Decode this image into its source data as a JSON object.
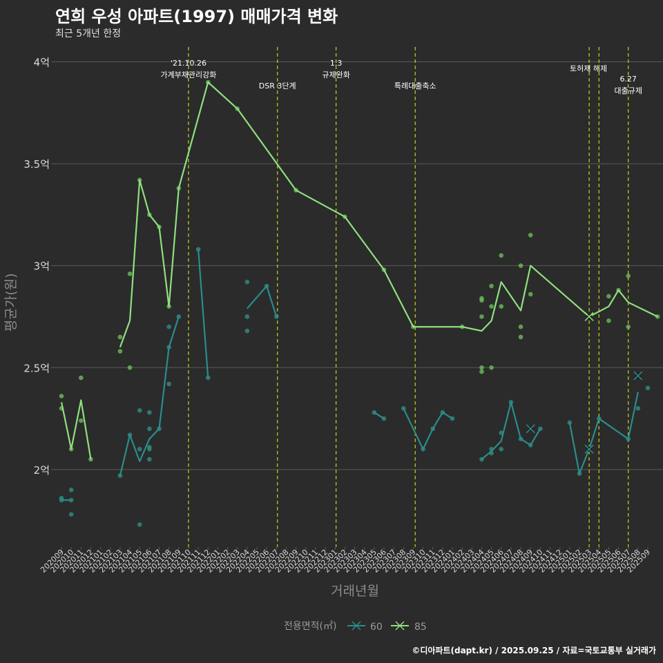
{
  "header": {
    "title": "연희 우성 아파트(1997) 매매가격 변화",
    "subtitle": "최근 5개년 한정"
  },
  "caption": "©디아파트(dapt.kr) / 2025.09.25 / 자료=국토교통부 실거래가",
  "colors": {
    "background": "#2b2b2b",
    "grid": "#5a5a5a",
    "series60": "#2a8d8c",
    "series85": "#90e07f",
    "point60": "#2f8f86",
    "point85": "#6bbb5d",
    "eventLine": "#c8d21e",
    "axisText": "#d9d9d9",
    "axisTitle": "#8c8c8c"
  },
  "chart_data": {
    "type": "line",
    "title": "연희 우성 아파트(1997) 매매가격 변화",
    "xlabel": "거래년월",
    "ylabel": "평균가(원)",
    "ylim": [
      1.62,
      4.1
    ],
    "y_ticks": [
      {
        "value": 2,
        "label": "2억"
      },
      {
        "value": 2.5,
        "label": "2.5억"
      },
      {
        "value": 3,
        "label": "3억"
      },
      {
        "value": 3.5,
        "label": "3.5억"
      },
      {
        "value": 4,
        "label": "4억"
      }
    ],
    "categories": [
      "202009",
      "202010",
      "202011",
      "202012",
      "202101",
      "202102",
      "202103",
      "202104",
      "202105",
      "202106",
      "202107",
      "202108",
      "202109",
      "202110",
      "202111",
      "202112",
      "202201",
      "202202",
      "202203",
      "202204",
      "202205",
      "202206",
      "202207",
      "202208",
      "202209",
      "202210",
      "202211",
      "202212",
      "202301",
      "202302",
      "202303",
      "202304",
      "202305",
      "202306",
      "202307",
      "202308",
      "202309",
      "202310",
      "202311",
      "202312",
      "202401",
      "202402",
      "202403",
      "202404",
      "202405",
      "202406",
      "202407",
      "202408",
      "202409",
      "202410",
      "202411",
      "202412",
      "202501",
      "202502",
      "202503",
      "202504",
      "202505",
      "202506",
      "202507",
      "202508",
      "202509"
    ],
    "legend_title": "전용면적(㎡)",
    "legend_position": "bottom",
    "series": [
      {
        "name": "60",
        "line": [
          [
            0,
            1.85
          ],
          [
            1,
            1.85
          ],
          [
            null,
            null
          ],
          [
            6,
            1.97
          ],
          [
            7,
            2.17
          ],
          [
            8,
            2.04
          ],
          [
            9,
            2.15
          ],
          [
            10,
            2.2
          ],
          [
            11,
            2.6
          ],
          [
            12,
            2.75
          ],
          [
            null,
            null
          ],
          [
            14,
            3.08
          ],
          [
            15,
            2.45
          ],
          [
            null,
            null
          ],
          [
            19,
            2.79
          ],
          [
            21,
            2.9
          ],
          [
            22,
            2.75
          ],
          [
            null,
            null
          ],
          [
            32,
            2.28
          ],
          [
            33,
            2.25
          ],
          [
            null,
            null
          ],
          [
            35,
            2.3
          ],
          [
            37,
            2.1
          ],
          [
            38,
            2.2
          ],
          [
            39,
            2.28
          ],
          [
            40,
            2.25
          ],
          [
            null,
            null
          ],
          [
            43,
            2.05
          ],
          [
            44,
            2.09
          ],
          [
            45,
            2.14
          ],
          [
            46,
            2.33
          ],
          [
            47,
            2.15
          ],
          [
            48,
            2.12
          ],
          [
            49,
            2.2
          ],
          [
            null,
            null
          ],
          [
            52,
            2.23
          ],
          [
            53,
            1.98
          ],
          [
            54,
            2.1
          ],
          [
            55,
            2.25
          ],
          [
            58,
            2.15
          ],
          [
            59,
            2.38
          ]
        ],
        "points": [
          [
            0,
            1.86
          ],
          [
            0,
            1.85
          ],
          [
            1,
            1.9
          ],
          [
            1,
            1.85
          ],
          [
            1,
            1.78
          ],
          [
            6,
            1.97
          ],
          [
            7,
            2.17
          ],
          [
            8,
            2.29
          ],
          [
            8,
            2.1
          ],
          [
            8,
            1.73
          ],
          [
            9,
            2.28
          ],
          [
            9,
            2.2
          ],
          [
            9,
            2.11
          ],
          [
            9,
            2.1
          ],
          [
            9,
            2.05
          ],
          [
            10,
            2.2
          ],
          [
            11,
            2.7
          ],
          [
            11,
            2.6
          ],
          [
            11,
            2.42
          ],
          [
            12,
            2.75
          ],
          [
            14,
            3.08
          ],
          [
            15,
            2.45
          ],
          [
            19,
            2.92
          ],
          [
            19,
            2.75
          ],
          [
            19,
            2.68
          ],
          [
            21,
            2.9
          ],
          [
            22,
            2.75
          ],
          [
            32,
            2.28
          ],
          [
            33,
            2.25
          ],
          [
            35,
            2.3
          ],
          [
            37,
            2.1
          ],
          [
            38,
            2.2
          ],
          [
            39,
            2.28
          ],
          [
            40,
            2.25
          ],
          [
            43,
            2.05
          ],
          [
            44,
            2.08
          ],
          [
            44,
            2.1
          ],
          [
            45,
            2.18
          ],
          [
            45,
            2.1
          ],
          [
            46,
            2.33
          ],
          [
            47,
            2.15
          ],
          [
            48,
            2.12
          ],
          [
            49,
            2.2
          ],
          [
            52,
            2.23
          ],
          [
            53,
            1.98
          ],
          [
            55,
            2.25
          ],
          [
            58,
            2.15
          ],
          [
            59,
            2.3
          ],
          [
            60,
            2.4
          ]
        ],
        "cancelled": [
          [
            48,
            2.2
          ],
          [
            54,
            2.1
          ],
          [
            59,
            2.46
          ]
        ]
      },
      {
        "name": "85",
        "line": [
          [
            0,
            2.33
          ],
          [
            1,
            2.1
          ],
          [
            2,
            2.34
          ],
          [
            3,
            2.05
          ],
          [
            null,
            null
          ],
          [
            6,
            2.6
          ],
          [
            7,
            2.73
          ],
          [
            8,
            3.42
          ],
          [
            9,
            3.25
          ],
          [
            10,
            3.19
          ],
          [
            11,
            2.8
          ],
          [
            12,
            3.38
          ],
          [
            15,
            3.9
          ],
          [
            18,
            3.77
          ],
          [
            24,
            3.37
          ],
          [
            29,
            3.24
          ],
          [
            33,
            2.98
          ],
          [
            36,
            2.7
          ],
          [
            41,
            2.7
          ],
          [
            43,
            2.68
          ],
          [
            44,
            2.73
          ],
          [
            45,
            2.92
          ],
          [
            47,
            2.78
          ],
          [
            48,
            3.0
          ],
          [
            54,
            2.75
          ],
          [
            56,
            2.8
          ],
          [
            57,
            2.88
          ],
          [
            58,
            2.82
          ],
          [
            61,
            2.75
          ]
        ],
        "points": [
          [
            0,
            2.36
          ],
          [
            0,
            2.3
          ],
          [
            1,
            2.1
          ],
          [
            2,
            2.45
          ],
          [
            2,
            2.24
          ],
          [
            3,
            2.05
          ],
          [
            6,
            2.65
          ],
          [
            6,
            2.58
          ],
          [
            7,
            2.96
          ],
          [
            7,
            2.5
          ],
          [
            8,
            3.42
          ],
          [
            9,
            3.25
          ],
          [
            10,
            3.19
          ],
          [
            11,
            2.8
          ],
          [
            12,
            3.38
          ],
          [
            15,
            3.9
          ],
          [
            18,
            3.77
          ],
          [
            24,
            3.37
          ],
          [
            29,
            3.24
          ],
          [
            33,
            2.98
          ],
          [
            36,
            2.7
          ],
          [
            41,
            2.7
          ],
          [
            43,
            2.84
          ],
          [
            43,
            2.83
          ],
          [
            43,
            2.75
          ],
          [
            43,
            2.5
          ],
          [
            43,
            2.48
          ],
          [
            44,
            2.9
          ],
          [
            44,
            2.8
          ],
          [
            44,
            2.5
          ],
          [
            45,
            3.05
          ],
          [
            45,
            2.8
          ],
          [
            47,
            3.0
          ],
          [
            47,
            2.7
          ],
          [
            47,
            2.65
          ],
          [
            48,
            3.15
          ],
          [
            48,
            2.86
          ],
          [
            54,
            2.75
          ],
          [
            56,
            2.85
          ],
          [
            56,
            2.73
          ],
          [
            57,
            2.88
          ],
          [
            58,
            2.95
          ],
          [
            58,
            2.7
          ],
          [
            61,
            2.75
          ]
        ],
        "cancelled": [
          [
            54,
            2.75
          ]
        ]
      }
    ],
    "events": [
      {
        "x": 13.0,
        "label1": "'21.10.26",
        "label2": "가계부채관리강화",
        "row": "top"
      },
      {
        "x": 22.1,
        "label1": "",
        "label2": "DSR 3단계",
        "row": "low"
      },
      {
        "x": 28.1,
        "label1": "1.3",
        "label2": "규제완화",
        "row": "top"
      },
      {
        "x": 36.2,
        "label1": "",
        "label2": "특례대출축소",
        "row": "low"
      },
      {
        "x": 54.0,
        "label1": "",
        "label2": "토허제 해제",
        "row": "mid"
      },
      {
        "x": 55.0,
        "label1": "",
        "label2": "",
        "row": "none"
      },
      {
        "x": 58.0,
        "label1": "6.27",
        "label2": "대출규제",
        "row": "right"
      }
    ]
  }
}
